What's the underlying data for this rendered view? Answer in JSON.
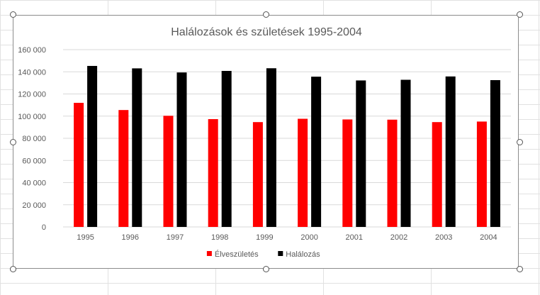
{
  "chart_data": {
    "type": "bar",
    "title": "Halálozások és születések 1995-2004",
    "xlabel": "",
    "ylabel": "",
    "categories": [
      "1995",
      "1996",
      "1997",
      "1998",
      "1999",
      "2000",
      "2001",
      "2002",
      "2003",
      "2004"
    ],
    "ylim": [
      0,
      160000
    ],
    "yticks": [
      0,
      20000,
      40000,
      60000,
      80000,
      100000,
      120000,
      140000,
      160000
    ],
    "ytick_labels": [
      "0",
      "20 000",
      "40 000",
      "60 000",
      "80 000",
      "100 000",
      "120 000",
      "140 000",
      "160 000"
    ],
    "grid": true,
    "legend_position": "bottom",
    "series": [
      {
        "name": "Élveszületés",
        "color": "#ff0000",
        "values": [
          112000,
          105500,
          100300,
          97300,
          94600,
          97600,
          97000,
          96800,
          94600,
          95100
        ]
      },
      {
        "name": "Halálozás",
        "color": "#000000",
        "values": [
          145300,
          143100,
          139400,
          140800,
          143200,
          135600,
          132200,
          132800,
          135800,
          132500
        ]
      }
    ]
  }
}
